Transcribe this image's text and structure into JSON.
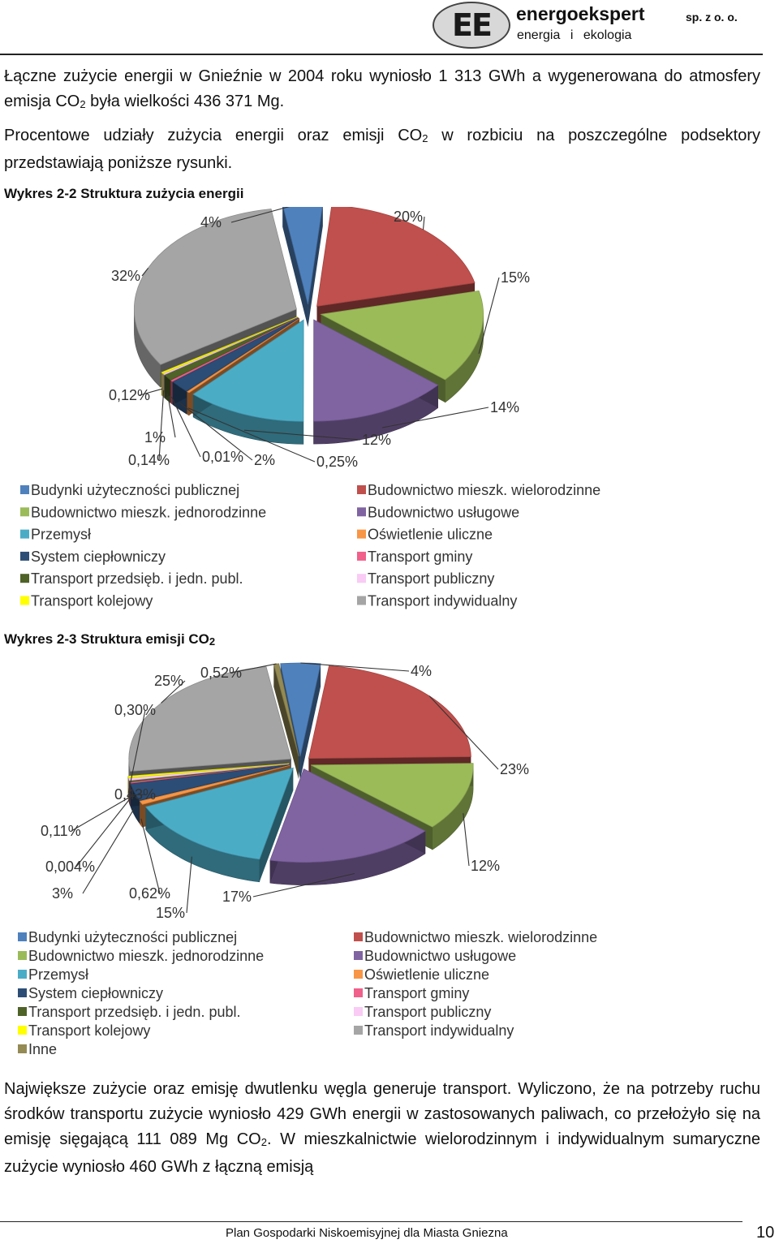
{
  "header": {
    "logo_letters": "EE",
    "company_name": "energoekspert",
    "tagline": "energia   i ekologia",
    "legal_form": "sp. z o. o."
  },
  "body": {
    "paragraph1_a": "Łączne zużycie energii w Gnieźnie w 2004 roku wyniosło 1 313 GWh a wygenerowana do atmosfery emisja CO",
    "paragraph1_sub": "2",
    "paragraph1_b": " była wielkości 436 371 Mg.",
    "paragraph2_a": "Procentowe udziały zużycia energii oraz emisji CO",
    "paragraph2_sub": "2",
    "paragraph2_b": " w rozbiciu na poszczególne podsektory przedstawiają poniższe rysunki.",
    "caption1": "Wykres 2-2 Struktura zużycia energii",
    "caption2_a": "Wykres 2-3 Struktura emisji CO",
    "caption2_sub": "2",
    "paragraph3_a": "Największe zużycie oraz emisję dwutlenku węgla generuje transport. Wyliczono, że na potrzeby ruchu środków transportu zużycie wyniosło 429 GWh energii w zastosowanych paliwach, co przełożyło się na emisję sięgającą 111 089 Mg CO",
    "paragraph3_sub": "2",
    "paragraph3_b": ". W mieszkalnictwie wielorodzinnym i indywidualnym sumaryczne zużycie wyniosło 460 GWh z łączną emisją"
  },
  "footer": {
    "title": "Plan Gospodarki Niskoemisyjnej dla Miasta Gniezna",
    "page_number": "10"
  },
  "chart_data": [
    {
      "type": "pie",
      "title": "",
      "legend_position": "bottom",
      "slices": [
        {
          "name": "Budynki użyteczności publicznej",
          "label": "4%",
          "value": 4,
          "color": "#4F81BD"
        },
        {
          "name": "Budownictwo mieszk. wielorodzinne",
          "label": "20%",
          "value": 20,
          "color": "#C0504D"
        },
        {
          "name": "Budownictwo mieszk. jednorodzinne",
          "label": "15%",
          "value": 15,
          "color": "#9BBB59"
        },
        {
          "name": "Budownictwo usługowe",
          "label": "14%",
          "value": 14,
          "color": "#8064A2"
        },
        {
          "name": "Przemysł",
          "label": "12%",
          "value": 12,
          "color": "#4BACC6"
        },
        {
          "name": "Oświetlenie uliczne",
          "label": "0,25%",
          "value": 0.25,
          "color": "#F79646"
        },
        {
          "name": "System ciepłowniczy",
          "label": "2%",
          "value": 2,
          "color": "#2C4D75"
        },
        {
          "name": "Transport gminy",
          "label": "0,01%",
          "value": 0.01,
          "color": "#F0608A"
        },
        {
          "name": "Transport przedsięb. i jedn. publ.",
          "label": "1%",
          "value": 1,
          "color": "#4F6228"
        },
        {
          "name": "Transport publiczny",
          "label": "0,14%",
          "value": 0.14,
          "color": "#F9CBF5"
        },
        {
          "name": "Transport kolejowy",
          "label": "0,12%",
          "value": 0.12,
          "color": "#FFFF00"
        },
        {
          "name": "Transport indywidualny",
          "label": "32%",
          "value": 32,
          "color": "#A5A5A5"
        }
      ]
    },
    {
      "type": "pie",
      "title": "",
      "legend_position": "bottom",
      "slices": [
        {
          "name": "Budynki użyteczności publicznej",
          "label": "4%",
          "value": 4,
          "color": "#4F81BD"
        },
        {
          "name": "Budownictwo mieszk. wielorodzinne",
          "label": "23%",
          "value": 23,
          "color": "#C0504D"
        },
        {
          "name": "Budownictwo mieszk. jednorodzinne",
          "label": "12%",
          "value": 12,
          "color": "#9BBB59"
        },
        {
          "name": "Budownictwo usługowe",
          "label": "17%",
          "value": 17,
          "color": "#8064A2"
        },
        {
          "name": "Przemysł",
          "label": "15%",
          "value": 15,
          "color": "#4BACC6"
        },
        {
          "name": "Oświetlenie uliczne",
          "label": "0,62%",
          "value": 0.62,
          "color": "#F79646"
        },
        {
          "name": "System ciepłowniczy",
          "label": "3%",
          "value": 3,
          "color": "#2C4D75"
        },
        {
          "name": "Transport gminy",
          "label": "0,004%",
          "value": 0.004,
          "color": "#F0608A"
        },
        {
          "name": "Transport przedsięb. i jedn. publ.",
          "label": "0,11%",
          "value": 0.11,
          "color": "#4F6228"
        },
        {
          "name": "Transport publiczny",
          "label": "0,43%",
          "value": 0.43,
          "color": "#F9CBF5"
        },
        {
          "name": "Transport kolejowy",
          "label": "0,30%",
          "value": 0.3,
          "color": "#FFFF00"
        },
        {
          "name": "Transport indywidualny",
          "label": "25%",
          "value": 25,
          "color": "#A5A5A5"
        },
        {
          "name": "Inne",
          "label": "0,52%",
          "value": 0.52,
          "color": "#948A54"
        }
      ]
    }
  ]
}
